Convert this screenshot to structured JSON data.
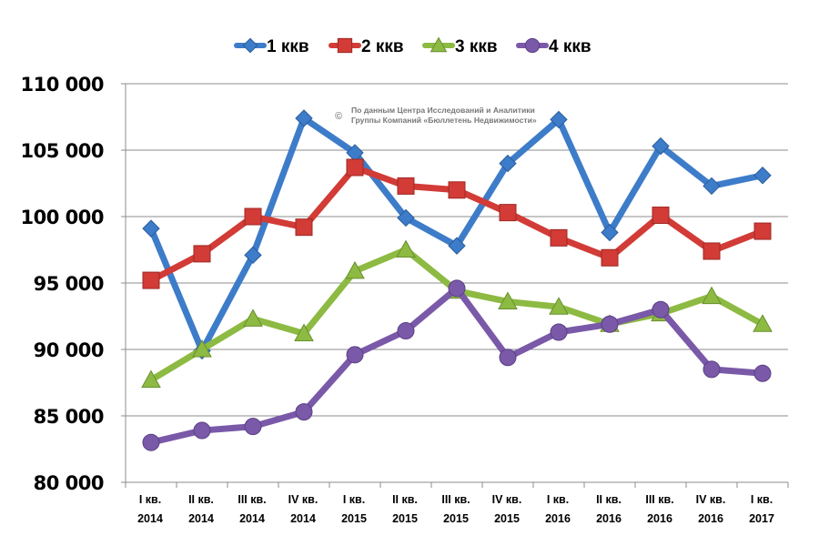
{
  "chart_data": {
    "type": "line",
    "title": "",
    "xlabel": "",
    "ylabel": "",
    "ylim": [
      80000,
      110000
    ],
    "yticks": [
      80000,
      85000,
      90000,
      95000,
      100000,
      105000,
      110000
    ],
    "ytick_labels": [
      "80 000",
      "85 000",
      "90 000",
      "95 000",
      "100 000",
      "105 000",
      "110 000"
    ],
    "grid": true,
    "legend_position": "top-center",
    "categories": [
      [
        "I кв.",
        "2014"
      ],
      [
        "II кв.",
        "2014"
      ],
      [
        "III кв.",
        "2014"
      ],
      [
        "IV кв.",
        "2014"
      ],
      [
        "I кв.",
        "2015"
      ],
      [
        "II кв.",
        "2015"
      ],
      [
        "III кв.",
        "2015"
      ],
      [
        "IV кв.",
        "2015"
      ],
      [
        "I кв.",
        "2016"
      ],
      [
        "II кв.",
        "2016"
      ],
      [
        "III кв.",
        "2016"
      ],
      [
        "IV кв.",
        "2016"
      ],
      [
        "I кв.",
        "2017"
      ]
    ],
    "series": [
      {
        "name": "1 ккв",
        "color": "#3d7cc9",
        "marker": "diamond",
        "values": [
          99100,
          89900,
          97100,
          107400,
          104800,
          99900,
          97800,
          104000,
          107300,
          98800,
          105300,
          102300,
          103100
        ]
      },
      {
        "name": "2 ккв",
        "color": "#d23b36",
        "marker": "square",
        "values": [
          95200,
          97200,
          100000,
          99200,
          103700,
          102300,
          102000,
          100300,
          98400,
          96900,
          100100,
          97400,
          98900
        ]
      },
      {
        "name": "3 ккв",
        "color": "#8dba42",
        "marker": "triangle",
        "values": [
          87700,
          90000,
          92300,
          91200,
          95900,
          97500,
          94400,
          93600,
          93200,
          91900,
          92700,
          94000,
          91900
        ]
      },
      {
        "name": "4 ккв",
        "color": "#7a59a8",
        "marker": "circle",
        "values": [
          83000,
          83900,
          84200,
          85300,
          89600,
          91400,
          94600,
          89400,
          91300,
          91900,
          93000,
          88500,
          88200
        ]
      }
    ],
    "annotation": {
      "symbol": "©",
      "lines": [
        "По данным Центра Исследований и Аналитики",
        "Группы Компаний «Бюллетень Недвижимости»"
      ]
    }
  }
}
